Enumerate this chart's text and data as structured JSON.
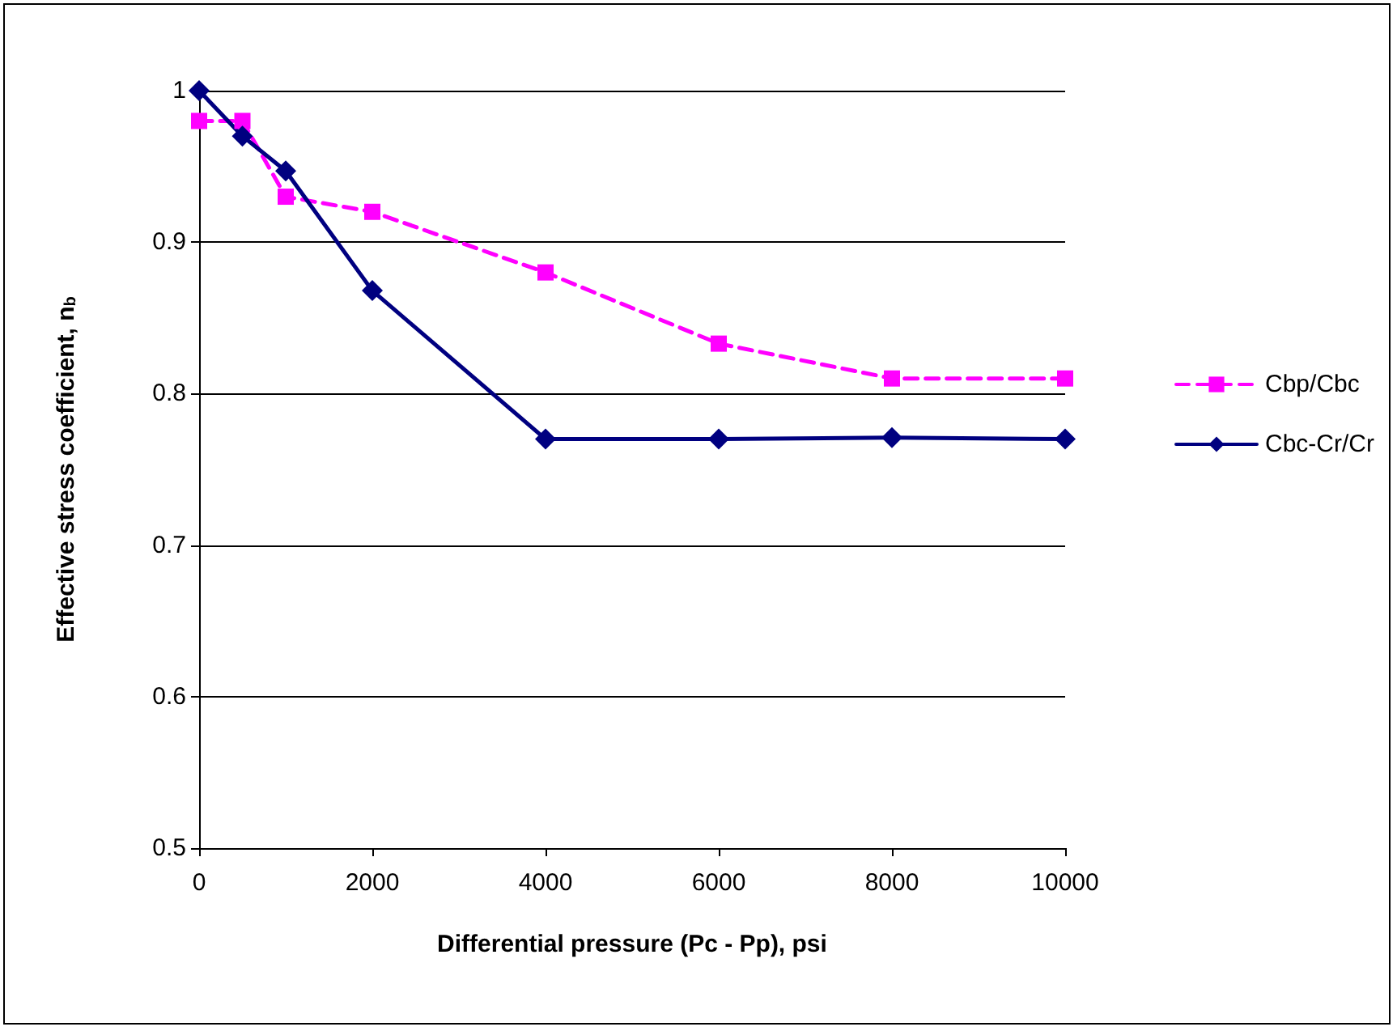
{
  "chart_data": {
    "type": "line",
    "xlabel": "Differential pressure (Pc - Pp), psi",
    "ylabel": "Effective stress coefficient, n$_{b}$",
    "x": [
      0,
      500,
      1000,
      2000,
      4000,
      6000,
      8000,
      10000
    ],
    "series": [
      {
        "name": "Cbp/Cbc",
        "color": "#ff00ff",
        "marker": "square",
        "line_style": "dashed",
        "values": [
          0.98,
          0.98,
          0.93,
          0.92,
          0.88,
          0.833,
          0.81,
          0.81
        ]
      },
      {
        "name": "Cbc-Cr/Cr",
        "color": "#000080",
        "marker": "diamond",
        "line_style": "solid",
        "values": [
          1,
          0.97,
          0.947,
          0.868,
          0.77,
          0.77,
          0.771,
          0.77
        ]
      }
    ],
    "xlim": [
      0,
      10000
    ],
    "xticks": [
      0,
      2000,
      4000,
      6000,
      8000,
      10000
    ],
    "ylim": [
      0.5,
      1
    ],
    "yticks": [
      0.5,
      0.6,
      0.7,
      0.8,
      0.9,
      1
    ],
    "grid": "y",
    "legend": "right"
  }
}
